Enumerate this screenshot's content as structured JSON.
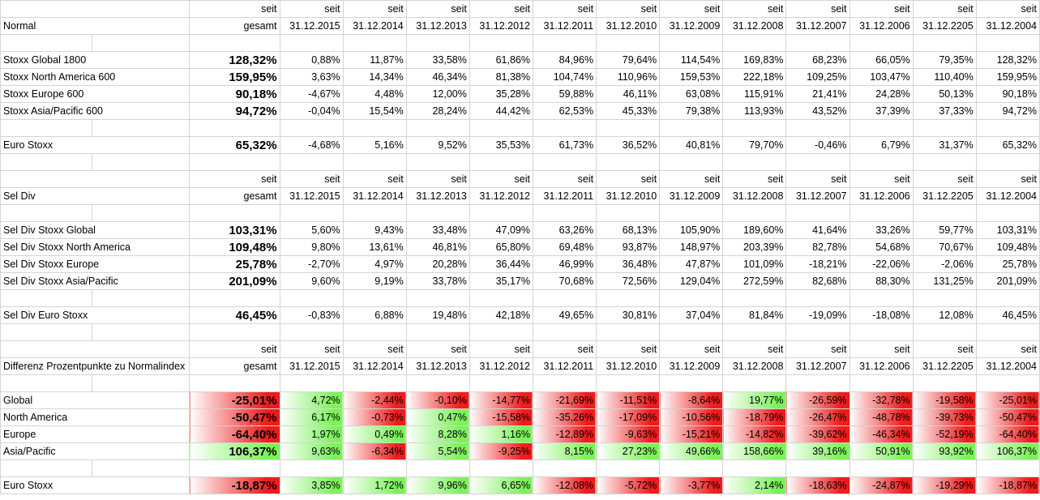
{
  "colors": {
    "pos": "#7cf25a",
    "neg": "#ee1c1c",
    "grid": "#d4d4d4"
  },
  "header": {
    "top": [
      "seit",
      "seit",
      "seit",
      "seit",
      "seit",
      "seit",
      "seit",
      "seit",
      "seit",
      "seit",
      "seit",
      "seit",
      "seit"
    ],
    "bottom": [
      "gesamt",
      "31.12.2015",
      "31.12.2014",
      "31.12.2013",
      "31.12.2012",
      "31.12.2011",
      "31.12.2010",
      "31.12.2009",
      "31.12.2008",
      "31.12.2007",
      "31.12.2006",
      "31.12.2205",
      "31.12.2004"
    ]
  },
  "sections": [
    {
      "title": "Normal",
      "groups": [
        [
          {
            "label": "Stoxx Global 1800",
            "values": [
              "128,32%",
              "0,88%",
              "11,87%",
              "33,58%",
              "61,86%",
              "84,96%",
              "79,64%",
              "114,54%",
              "169,83%",
              "68,23%",
              "66,05%",
              "79,35%",
              "128,32%"
            ]
          },
          {
            "label": "Stoxx North America 600",
            "values": [
              "159,95%",
              "3,63%",
              "14,34%",
              "46,34%",
              "81,38%",
              "104,74%",
              "110,96%",
              "159,53%",
              "222,18%",
              "109,25%",
              "103,47%",
              "110,40%",
              "159,95%"
            ]
          },
          {
            "label": "Stoxx Europe 600",
            "values": [
              "90,18%",
              "-4,67%",
              "4,48%",
              "12,00%",
              "35,28%",
              "59,88%",
              "46,11%",
              "63,08%",
              "115,91%",
              "21,41%",
              "24,28%",
              "50,13%",
              "90,18%"
            ]
          },
          {
            "label": "Stoxx Asia/Pacific 600",
            "values": [
              "94,72%",
              "-0,04%",
              "15,54%",
              "28,24%",
              "44,42%",
              "62,53%",
              "45,33%",
              "79,38%",
              "113,93%",
              "43,52%",
              "37,39%",
              "37,33%",
              "94,72%"
            ]
          }
        ],
        [
          {
            "label": "Euro Stoxx",
            "values": [
              "65,32%",
              "-4,68%",
              "5,16%",
              "9,52%",
              "35,53%",
              "61,73%",
              "36,52%",
              "40,81%",
              "79,70%",
              "-0,46%",
              "6,79%",
              "31,37%",
              "65,32%"
            ]
          }
        ]
      ]
    },
    {
      "title": "Sel Div",
      "groups": [
        [
          {
            "label": "Sel Div Stoxx Global",
            "values": [
              "103,31%",
              "5,60%",
              "9,43%",
              "33,48%",
              "47,09%",
              "63,26%",
              "68,13%",
              "105,90%",
              "189,60%",
              "41,64%",
              "33,26%",
              "59,77%",
              "103,31%"
            ]
          },
          {
            "label": "Sel Div Stoxx North America",
            "values": [
              "109,48%",
              "9,80%",
              "13,61%",
              "46,81%",
              "65,80%",
              "69,48%",
              "93,87%",
              "148,97%",
              "203,39%",
              "82,78%",
              "54,68%",
              "70,67%",
              "109,48%"
            ]
          },
          {
            "label": "Sel Div Stoxx Europe",
            "values": [
              "25,78%",
              "-2,70%",
              "4,97%",
              "20,28%",
              "36,44%",
              "46,99%",
              "36,48%",
              "47,87%",
              "101,09%",
              "-18,21%",
              "-22,06%",
              "-2,06%",
              "25,78%"
            ]
          },
          {
            "label": "Sel Div Stoxx Asia/Pacific",
            "values": [
              "201,09%",
              "9,60%",
              "9,19%",
              "33,78%",
              "35,17%",
              "70,68%",
              "72,56%",
              "129,04%",
              "272,59%",
              "82,68%",
              "88,30%",
              "131,25%",
              "201,09%"
            ]
          }
        ],
        [
          {
            "label": "Sel Div Euro Stoxx",
            "values": [
              "46,45%",
              "-0,83%",
              "6,88%",
              "19,48%",
              "42,18%",
              "49,65%",
              "30,81%",
              "37,04%",
              "81,84%",
              "-19,09%",
              "-18,08%",
              "12,08%",
              "46,45%"
            ]
          }
        ]
      ]
    },
    {
      "title": "Differenz Prozentpunkte zu Normalindex",
      "colored": true,
      "groups": [
        [
          {
            "label": "Global",
            "values": [
              "-25,01%",
              "4,72%",
              "-2,44%",
              "-0,10%",
              "-14,77%",
              "-21,69%",
              "-11,51%",
              "-8,64%",
              "19,77%",
              "-26,59%",
              "-32,78%",
              "-19,58%",
              "-25,01%"
            ]
          },
          {
            "label": "North America",
            "values": [
              "-50,47%",
              "6,17%",
              "-0,73%",
              "0,47%",
              "-15,58%",
              "-35,26%",
              "-17,09%",
              "-10,56%",
              "-18,79%",
              "-26,47%",
              "-48,78%",
              "-39,73%",
              "-50,47%"
            ]
          },
          {
            "label": "Europe",
            "values": [
              "-64,40%",
              "1,97%",
              "0,49%",
              "8,28%",
              "1,16%",
              "-12,89%",
              "-9,63%",
              "-15,21%",
              "-14,82%",
              "-39,62%",
              "-46,34%",
              "-52,19%",
              "-64,40%"
            ]
          },
          {
            "label": "Asia/Pacific",
            "values": [
              "106,37%",
              "9,63%",
              "-6,34%",
              "5,54%",
              "-9,25%",
              "8,15%",
              "27,23%",
              "49,66%",
              "158,66%",
              "39,16%",
              "50,91%",
              "93,92%",
              "106,37%"
            ]
          }
        ],
        [
          {
            "label": "Euro Stoxx",
            "values": [
              "-18,87%",
              "3,85%",
              "1,72%",
              "9,96%",
              "6,65%",
              "-12,08%",
              "-5,72%",
              "-3,77%",
              "2,14%",
              "-18,63%",
              "-24,87%",
              "-19,29%",
              "-18,87%"
            ]
          }
        ]
      ]
    }
  ]
}
